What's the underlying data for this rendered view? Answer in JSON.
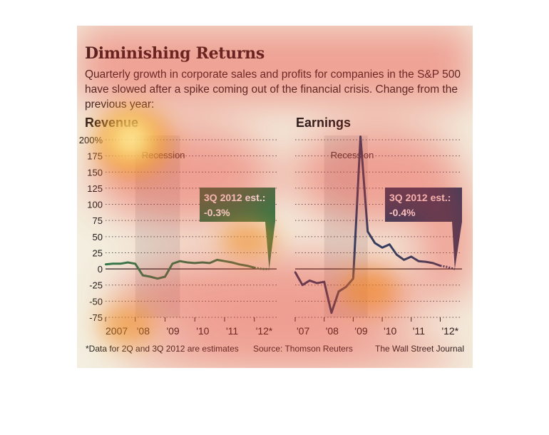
{
  "title": "Diminishing Returns",
  "subtitle": "Quarterly growth in corporate sales and profits for companies in the S&P 500 have slowed after a spike coming out of the financial crisis. Change from the previous year:",
  "footnote": "*Data for 2Q and 3Q 2012 are estimates",
  "source": "Source: Thomson Reuters",
  "credit": "The Wall Street Journal",
  "chart_data": [
    {
      "type": "line",
      "title": "Revenue",
      "ylim": [
        -75,
        200
      ],
      "yticks": [
        -75,
        -50,
        -25,
        0,
        25,
        50,
        75,
        100,
        125,
        150,
        175,
        200
      ],
      "ytick_labels": [
        "-75",
        "-50",
        "-25",
        "0",
        "25",
        "50",
        "75",
        "100",
        "125",
        "150",
        "175",
        "200%"
      ],
      "xlim": [
        2007.0,
        2012.75
      ],
      "xtick_positions": [
        2007.0,
        2008.0,
        2009.0,
        2010.0,
        2011.0,
        2012.0
      ],
      "xtick_labels": [
        "2007",
        "'08",
        "'09",
        "'10",
        "'11",
        "'12*"
      ],
      "recession": {
        "start": 2008.0,
        "end": 2009.5,
        "label": "Recession"
      },
      "color": "#2e7a4a",
      "series": [
        {
          "x": [
            2007.0,
            2007.25,
            2007.5,
            2007.75,
            2008.0,
            2008.25,
            2008.5,
            2008.75,
            2009.0,
            2009.25,
            2009.5,
            2009.75,
            2010.0,
            2010.25,
            2010.5,
            2010.75,
            2011.0,
            2011.25,
            2011.5,
            2011.75,
            2012.0
          ],
          "y": [
            7,
            8,
            8,
            10,
            8,
            -10,
            -12,
            -15,
            -12,
            8,
            12,
            10,
            9,
            10,
            9,
            14,
            12,
            10,
            7,
            5,
            2
          ]
        }
      ],
      "estimate": {
        "x": [
          2012.0,
          2012.25,
          2012.5
        ],
        "y": [
          2,
          0,
          -0.3
        ]
      },
      "annotation": "3Q 2012 est.: -0.3%"
    },
    {
      "type": "line",
      "title": "Earnings",
      "ylim": [
        -75,
        200
      ],
      "xlim": [
        2007.0,
        2012.75
      ],
      "xtick_positions": [
        2007.0,
        2008.0,
        2009.0,
        2010.0,
        2011.0,
        2012.0
      ],
      "xtick_labels": [
        "'07",
        "'08",
        "'09",
        "'10",
        "'11",
        "'12*"
      ],
      "recession": {
        "start": 2008.0,
        "end": 2009.5,
        "label": "Recession"
      },
      "color": "#1d3f66",
      "series": [
        {
          "x": [
            2007.0,
            2007.25,
            2007.5,
            2007.75,
            2008.0,
            2008.25,
            2008.5,
            2008.75,
            2009.0,
            2009.25,
            2009.5,
            2009.75,
            2010.0,
            2010.25,
            2010.5,
            2010.75,
            2011.0,
            2011.25,
            2011.5,
            2011.75,
            2012.0
          ],
          "y": [
            -5,
            -25,
            -18,
            -22,
            -20,
            -68,
            -35,
            -28,
            -15,
            205,
            58,
            40,
            33,
            38,
            22,
            14,
            19,
            12,
            11,
            9,
            5
          ]
        }
      ],
      "estimate": {
        "x": [
          2012.0,
          2012.25,
          2012.5
        ],
        "y": [
          5,
          3,
          -0.4
        ]
      },
      "annotation": "3Q 2012 est.: -0.4%"
    }
  ]
}
